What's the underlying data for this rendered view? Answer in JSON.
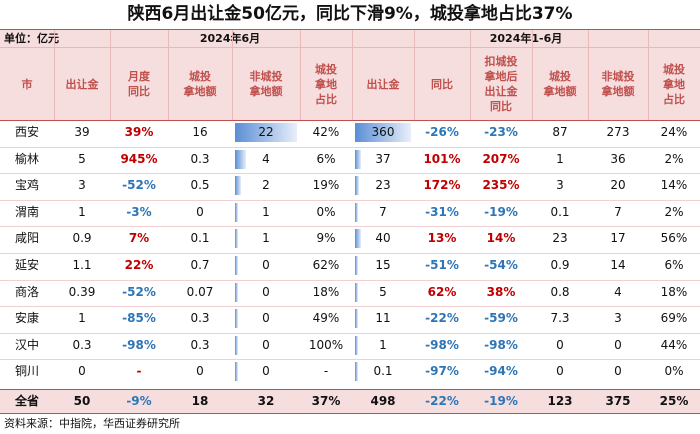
{
  "title": "陕西6月出让金50亿元，同比下滑9%，城投拿地占比37%",
  "unit": "单位：亿元",
  "group_june": "2024年6月",
  "group_h1": "2024年1-6月",
  "headers": {
    "city": "市",
    "june_revenue": "出让金",
    "june_mom": "月度\n同比",
    "june_chengtou": "城投\n拿地额",
    "june_non_chengtou": "非城投\n拿地额",
    "june_share": "城投\n拿地\n占比",
    "h1_revenue": "出让金",
    "h1_yoy": "同比",
    "h1_adj_yoy": "扣城投\n拿地后\n出让金\n同比",
    "h1_chengtou": "城投\n拿地额",
    "h1_non_chengtou": "非城投\n拿地额",
    "h1_share": "城投\n拿地\n占比"
  },
  "rows": [
    {
      "city": "西安",
      "june_revenue": "39",
      "june_mom": "39%",
      "june_chengtou": "16",
      "june_non_chengtou": "22",
      "june_share": "42%",
      "h1_revenue": "360",
      "h1_yoy": "-26%",
      "h1_adj_yoy": "-23%",
      "h1_chengtou": "87",
      "h1_non_chengtou": "273",
      "h1_share": "24%"
    },
    {
      "city": "榆林",
      "june_revenue": "5",
      "june_mom": "945%",
      "june_chengtou": "0.3",
      "june_non_chengtou": "4",
      "june_share": "6%",
      "h1_revenue": "37",
      "h1_yoy": "101%",
      "h1_adj_yoy": "207%",
      "h1_chengtou": "1",
      "h1_non_chengtou": "36",
      "h1_share": "2%"
    },
    {
      "city": "宝鸡",
      "june_revenue": "3",
      "june_mom": "-52%",
      "june_chengtou": "0.5",
      "june_non_chengtou": "2",
      "june_share": "19%",
      "h1_revenue": "23",
      "h1_yoy": "172%",
      "h1_adj_yoy": "235%",
      "h1_chengtou": "3",
      "h1_non_chengtou": "20",
      "h1_share": "14%"
    },
    {
      "city": "渭南",
      "june_revenue": "1",
      "june_mom": "-3%",
      "june_chengtou": "0",
      "june_non_chengtou": "1",
      "june_share": "0%",
      "h1_revenue": "7",
      "h1_yoy": "-31%",
      "h1_adj_yoy": "-19%",
      "h1_chengtou": "0.1",
      "h1_non_chengtou": "7",
      "h1_share": "2%"
    },
    {
      "city": "咸阳",
      "june_revenue": "0.9",
      "june_mom": "7%",
      "june_chengtou": "0.1",
      "june_non_chengtou": "1",
      "june_share": "9%",
      "h1_revenue": "40",
      "h1_yoy": "13%",
      "h1_adj_yoy": "14%",
      "h1_chengtou": "23",
      "h1_non_chengtou": "17",
      "h1_share": "56%"
    },
    {
      "city": "延安",
      "june_revenue": "1.1",
      "june_mom": "22%",
      "june_chengtou": "0.7",
      "june_non_chengtou": "0",
      "june_share": "62%",
      "h1_revenue": "15",
      "h1_yoy": "-51%",
      "h1_adj_yoy": "-54%",
      "h1_chengtou": "0.9",
      "h1_non_chengtou": "14",
      "h1_share": "6%"
    },
    {
      "city": "商洛",
      "june_revenue": "0.39",
      "june_mom": "-52%",
      "june_chengtou": "0.07",
      "june_non_chengtou": "0",
      "june_share": "18%",
      "h1_revenue": "5",
      "h1_yoy": "62%",
      "h1_adj_yoy": "38%",
      "h1_chengtou": "0.8",
      "h1_non_chengtou": "4",
      "h1_share": "18%"
    },
    {
      "city": "安康",
      "june_revenue": "1",
      "june_mom": "-85%",
      "june_chengtou": "0.3",
      "june_non_chengtou": "0",
      "june_share": "49%",
      "h1_revenue": "11",
      "h1_yoy": "-22%",
      "h1_adj_yoy": "-59%",
      "h1_chengtou": "7.3",
      "h1_non_chengtou": "3",
      "h1_share": "69%"
    },
    {
      "city": "汉中",
      "june_revenue": "0.3",
      "june_mom": "-98%",
      "june_chengtou": "0.3",
      "june_non_chengtou": "0",
      "june_share": "100%",
      "h1_revenue": "1",
      "h1_yoy": "-98%",
      "h1_adj_yoy": "-98%",
      "h1_chengtou": "0",
      "h1_non_chengtou": "0",
      "h1_share": "44%"
    },
    {
      "city": "铜川",
      "june_revenue": "0",
      "june_mom": "-",
      "june_chengtou": "0",
      "june_non_chengtou": "0",
      "june_share": "-",
      "h1_revenue": "0.1",
      "h1_yoy": "-97%",
      "h1_adj_yoy": "-94%",
      "h1_chengtou": "0",
      "h1_non_chengtou": "0",
      "h1_share": "0%"
    }
  ],
  "total": {
    "city": "全省",
    "june_revenue": "50",
    "june_mom": "-9%",
    "june_chengtou": "18",
    "june_non_chengtou": "32",
    "june_share": "37%",
    "h1_revenue": "498",
    "h1_yoy": "-22%",
    "h1_adj_yoy": "-19%",
    "h1_chengtou": "123",
    "h1_non_chengtou": "375",
    "h1_share": "25%"
  },
  "colors": {
    "positive": "#c00000",
    "negative": "#2e75b6",
    "header_text": "#c0504d",
    "band": "#f6dede"
  },
  "source": "资料来源：中指院，华西证券研究所"
}
